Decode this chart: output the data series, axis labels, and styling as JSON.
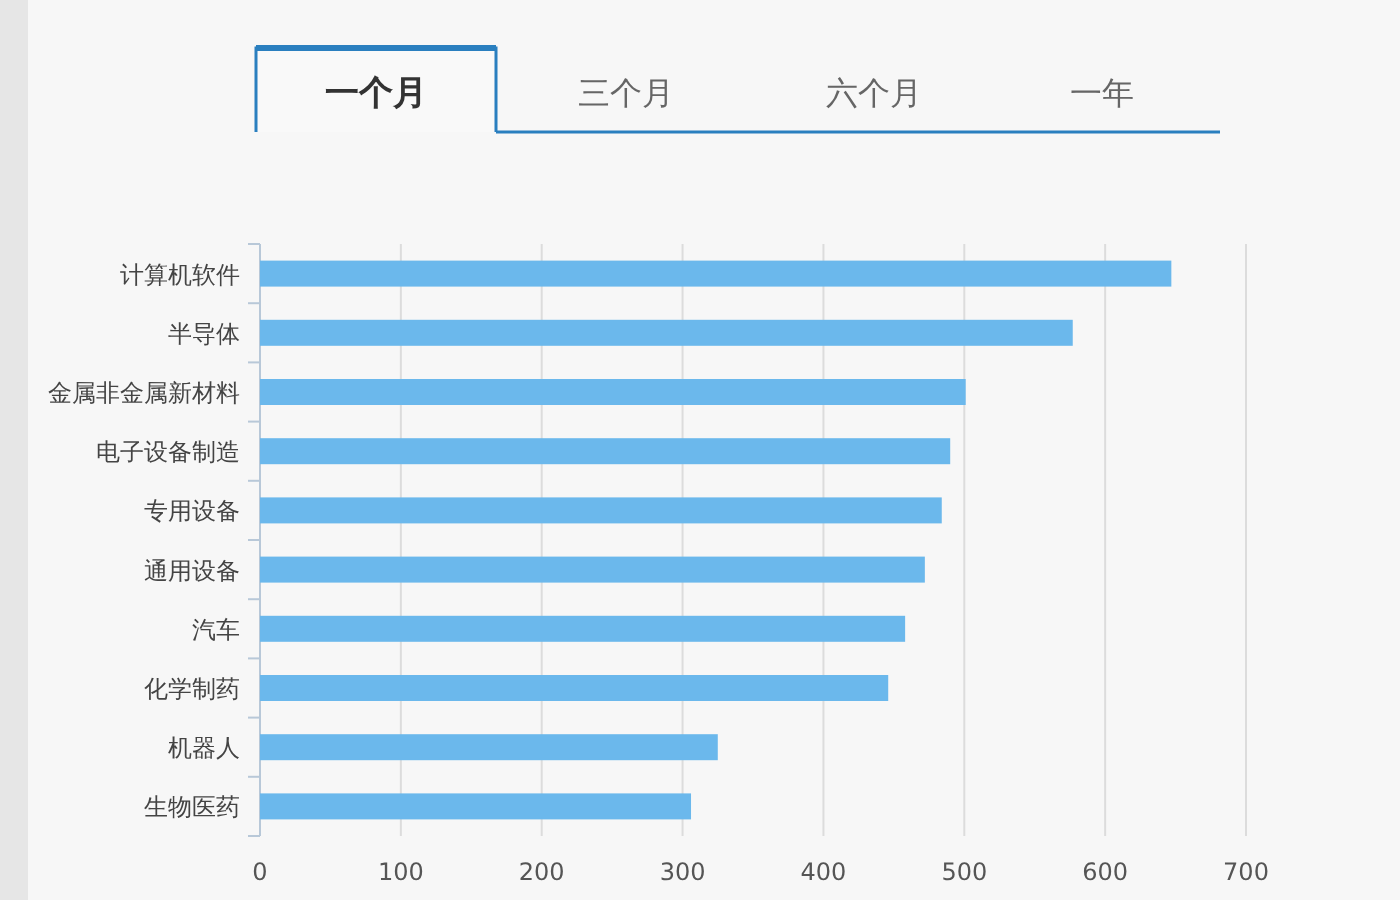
{
  "chart_data": {
    "type": "bar",
    "orientation": "horizontal",
    "categories": [
      "计算机软件",
      "半导体",
      "金属非金属新材料",
      "电子设备制造",
      "专用设备",
      "通用设备",
      "汽车",
      "化学制药",
      "机器人",
      "生物医药"
    ],
    "values": [
      647,
      577,
      501,
      490,
      484,
      472,
      458,
      446,
      325,
      306
    ],
    "color": "#6bb8ec",
    "xlim": [
      0,
      700
    ],
    "xticks": [
      0,
      100,
      200,
      300,
      400,
      500,
      600,
      700
    ],
    "grid": "x",
    "annotations": [
      "一个月",
      "三个月",
      "六个月",
      "一年"
    ]
  }
}
